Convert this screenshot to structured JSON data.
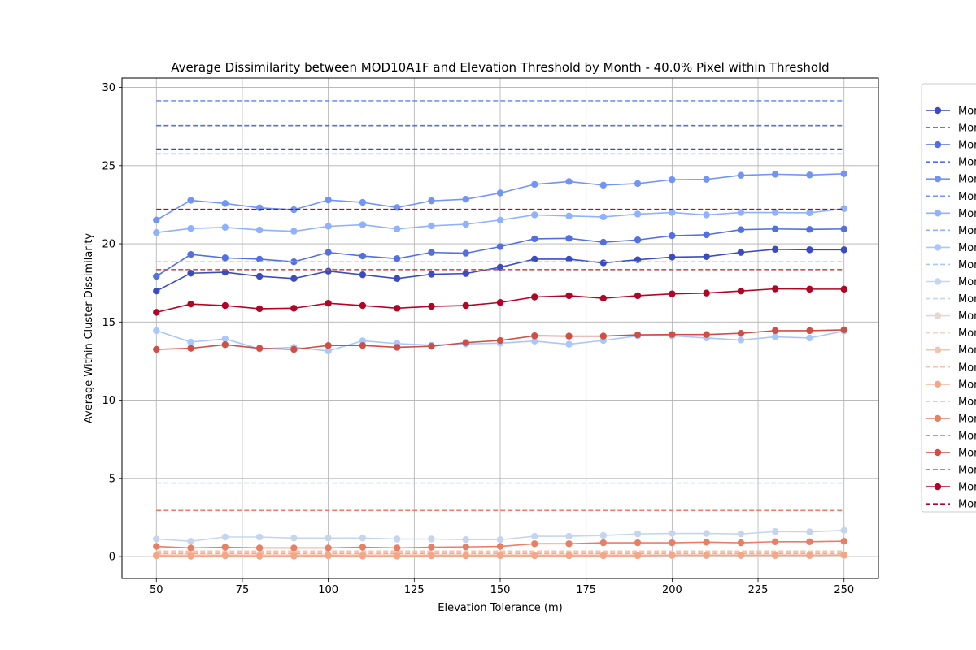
{
  "chart_data": {
    "type": "line",
    "title": "Average Dissimilarity between MOD10A1F and Elevation Threshold by Month - 40.0% Pixel within Threshold",
    "xlabel": "Elevation Tolerance (m)",
    "ylabel": "Average Within-Cluster Dissimilarity",
    "xlim": [
      40,
      260
    ],
    "ylim": [
      -1.4,
      30.6
    ],
    "xticks": [
      50,
      75,
      100,
      125,
      150,
      175,
      200,
      225,
      250
    ],
    "yticks": [
      0,
      5,
      10,
      15,
      20,
      25,
      30
    ],
    "grid": true,
    "legend_position": "right, outside",
    "x": [
      50,
      60,
      70,
      80,
      90,
      100,
      110,
      120,
      130,
      140,
      150,
      160,
      170,
      180,
      190,
      200,
      210,
      220,
      230,
      240,
      250
    ],
    "series": [
      {
        "name": "Mon",
        "color": "#3b4cc0",
        "style": "solid-marker",
        "values": [
          16.98,
          18.12,
          18.18,
          17.92,
          17.78,
          18.25,
          18.02,
          17.78,
          18.05,
          18.1,
          18.5,
          19.02,
          19.02,
          18.78,
          18.98,
          19.15,
          19.18,
          19.45,
          19.65,
          19.62,
          19.62
        ]
      },
      {
        "name": "Mon",
        "color": "#3b4cc0",
        "style": "dashed",
        "constant": 26.05
      },
      {
        "name": "Mon",
        "color": "#5470de",
        "style": "solid-marker",
        "values": [
          17.92,
          19.32,
          19.1,
          19.02,
          18.85,
          19.45,
          19.22,
          19.05,
          19.45,
          19.4,
          19.82,
          20.32,
          20.35,
          20.1,
          20.25,
          20.52,
          20.58,
          20.9,
          20.95,
          20.92,
          20.95
        ]
      },
      {
        "name": "Mon",
        "color": "#5470de",
        "style": "dashed",
        "constant": 27.55
      },
      {
        "name": "Mon",
        "color": "#7295f4",
        "style": "solid-marker",
        "values": [
          21.52,
          22.78,
          22.58,
          22.3,
          22.18,
          22.8,
          22.65,
          22.32,
          22.75,
          22.85,
          23.25,
          23.8,
          23.98,
          23.75,
          23.85,
          24.1,
          24.12,
          24.38,
          24.45,
          24.4,
          24.48
        ]
      },
      {
        "name": "Mon",
        "color": "#7295f4",
        "style": "dashed",
        "constant": 29.15
      },
      {
        "name": "Mon",
        "color": "#8fb1fe",
        "style": "solid-marker",
        "values": [
          20.72,
          20.98,
          21.05,
          20.88,
          20.8,
          21.12,
          21.22,
          20.95,
          21.15,
          21.25,
          21.52,
          21.85,
          21.78,
          21.72,
          21.9,
          22.0,
          21.85,
          22.0,
          22.0,
          21.98,
          22.25
        ]
      },
      {
        "name": "Mon",
        "color": "#8fb1fe",
        "style": "dashed",
        "constant": 25.75
      },
      {
        "name": "Mon",
        "color": "#aac7fd",
        "style": "solid-marker",
        "values": [
          14.45,
          13.72,
          13.92,
          13.28,
          13.38,
          13.15,
          13.8,
          13.62,
          13.52,
          13.6,
          13.65,
          13.78,
          13.58,
          13.82,
          14.12,
          14.12,
          13.98,
          13.85,
          14.05,
          13.98,
          14.42
        ]
      },
      {
        "name": "Mon",
        "color": "#aac7fd",
        "style": "dashed",
        "constant": 18.85
      },
      {
        "name": "Mon",
        "color": "#c5d5ef",
        "style": "solid-marker",
        "values": [
          1.12,
          0.98,
          1.25,
          1.25,
          1.18,
          1.18,
          1.18,
          1.12,
          1.12,
          1.08,
          1.08,
          1.3,
          1.3,
          1.35,
          1.45,
          1.48,
          1.48,
          1.45,
          1.6,
          1.58,
          1.68
        ]
      },
      {
        "name": "Mon",
        "color": "#c5d5ef",
        "style": "dashed",
        "constant": 4.7
      },
      {
        "name": "Mon",
        "color": "#e5d8d1",
        "style": "solid-marker",
        "values": [
          0.05,
          0.05,
          0.05,
          0.05,
          0.05,
          0.05,
          0.05,
          0.05,
          0.05,
          0.05,
          0.05,
          0.05,
          0.05,
          0.05,
          0.05,
          0.05,
          0.05,
          0.05,
          0.05,
          0.05,
          0.05
        ]
      },
      {
        "name": "Mon",
        "color": "#e5d8d1",
        "style": "dashed",
        "constant": 0.3
      },
      {
        "name": "Mon",
        "color": "#f2c4ae",
        "style": "solid-marker",
        "values": [
          0.1,
          0.1,
          0.1,
          0.1,
          0.1,
          0.1,
          0.1,
          0.1,
          0.1,
          0.1,
          0.1,
          0.1,
          0.1,
          0.1,
          0.1,
          0.1,
          0.1,
          0.1,
          0.1,
          0.1,
          0.1
        ]
      },
      {
        "name": "Mon",
        "color": "#f2c4ae",
        "style": "dashed",
        "constant": 0.35
      },
      {
        "name": "Mon",
        "color": "#f4a688",
        "style": "solid-marker",
        "values": [
          0.05,
          0.02,
          0.05,
          0.02,
          0.03,
          0.05,
          0.03,
          0.03,
          0.05,
          0.05,
          0.05,
          0.05,
          0.05,
          0.05,
          0.05,
          0.08,
          0.08,
          0.08,
          0.08,
          0.08,
          0.1
        ]
      },
      {
        "name": "Mon",
        "color": "#f4a688",
        "style": "dashed",
        "constant": 0.2
      },
      {
        "name": "Mon",
        "color": "#e87f65",
        "style": "solid-marker",
        "values": [
          0.65,
          0.55,
          0.6,
          0.55,
          0.55,
          0.55,
          0.6,
          0.55,
          0.6,
          0.62,
          0.65,
          0.82,
          0.82,
          0.88,
          0.88,
          0.88,
          0.92,
          0.88,
          0.95,
          0.95,
          0.98
        ]
      },
      {
        "name": "Mon",
        "color": "#e87f65",
        "style": "dashed",
        "constant": 2.95
      },
      {
        "name": "Mon",
        "color": "#cf4f45",
        "style": "solid-marker",
        "values": [
          13.25,
          13.32,
          13.55,
          13.32,
          13.25,
          13.5,
          13.5,
          13.38,
          13.45,
          13.68,
          13.82,
          14.12,
          14.1,
          14.1,
          14.18,
          14.2,
          14.2,
          14.28,
          14.45,
          14.45,
          14.5
        ]
      },
      {
        "name": "Mon",
        "color": "#cf4f45",
        "style": "dashed",
        "constant": 18.35
      },
      {
        "name": "Mon",
        "color": "#b40426",
        "style": "solid-marker",
        "values": [
          15.62,
          16.15,
          16.05,
          15.85,
          15.88,
          16.2,
          16.05,
          15.88,
          16.0,
          16.05,
          16.25,
          16.6,
          16.68,
          16.52,
          16.68,
          16.8,
          16.85,
          16.98,
          17.12,
          17.1,
          17.1
        ]
      },
      {
        "name": "Mon",
        "color": "#b40426",
        "style": "dashed",
        "constant": 22.2
      }
    ]
  }
}
